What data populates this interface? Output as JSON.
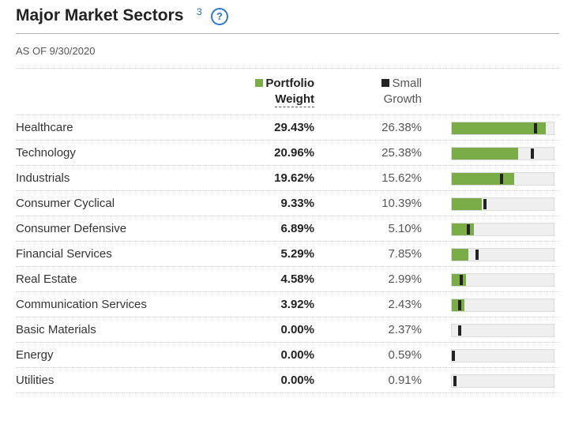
{
  "header": {
    "title": "Major Market Sectors",
    "footnote": "3",
    "help_glyph": "?",
    "as_of": "AS OF 9/30/2020"
  },
  "legend": {
    "portfolio_line1": "Portfolio",
    "portfolio_line2": "Weight",
    "benchmark_line1": "Small",
    "benchmark_line2": "Growth"
  },
  "colors": {
    "portfolio": "#7aac48",
    "benchmark": "#222222",
    "track": "#efefef"
  },
  "chart_data": {
    "type": "bar",
    "orientation": "horizontal",
    "title": "Major Market Sectors",
    "xlim": [
      0,
      32
    ],
    "categories": [
      "Healthcare",
      "Technology",
      "Industrials",
      "Consumer Cyclical",
      "Consumer Defensive",
      "Financial Services",
      "Real Estate",
      "Communication Services",
      "Basic Materials",
      "Energy",
      "Utilities"
    ],
    "series": [
      {
        "name": "Portfolio Weight",
        "labels": [
          "29.43%",
          "20.96%",
          "19.62%",
          "9.33%",
          "6.89%",
          "5.29%",
          "4.58%",
          "3.92%",
          "0.00%",
          "0.00%",
          "0.00%"
        ],
        "values": [
          29.43,
          20.96,
          19.62,
          9.33,
          6.89,
          5.29,
          4.58,
          3.92,
          0.0,
          0.0,
          0.0
        ]
      },
      {
        "name": "Small Growth",
        "labels": [
          "26.38%",
          "25.38%",
          "15.62%",
          "10.39%",
          "5.10%",
          "7.85%",
          "2.99%",
          "2.43%",
          "2.37%",
          "0.59%",
          "0.91%"
        ],
        "values": [
          26.38,
          25.38,
          15.62,
          10.39,
          5.1,
          7.85,
          2.99,
          2.43,
          2.37,
          0.59,
          0.91
        ]
      }
    ]
  }
}
